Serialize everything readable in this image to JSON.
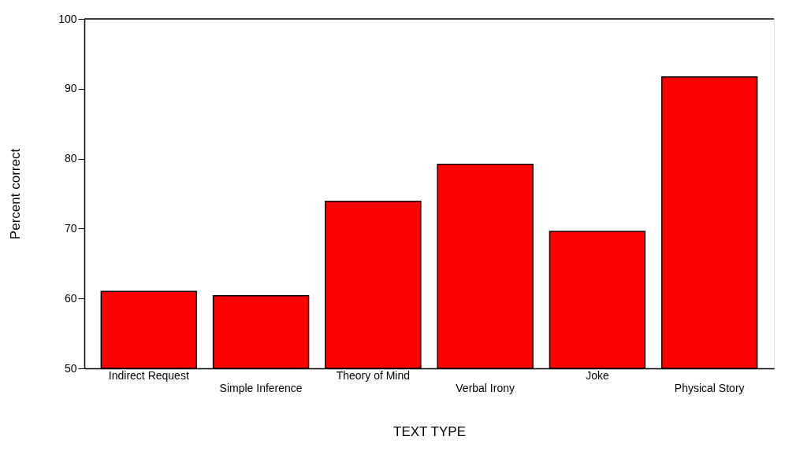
{
  "chart_data": {
    "type": "bar",
    "xlabel": "TEXT TYPE",
    "ylabel": "Percent correct",
    "categories": [
      "Indirect Request",
      "Simple Inference",
      "Theory of Mind",
      "Verbal Irony",
      "Joke",
      "Physical Story"
    ],
    "values": [
      61.0,
      60.4,
      73.9,
      79.2,
      69.6,
      91.7
    ],
    "color": "#ff0000",
    "ylim": [
      50,
      100
    ],
    "yticks": [
      50,
      60,
      70,
      80,
      90,
      100
    ],
    "grid": false
  }
}
